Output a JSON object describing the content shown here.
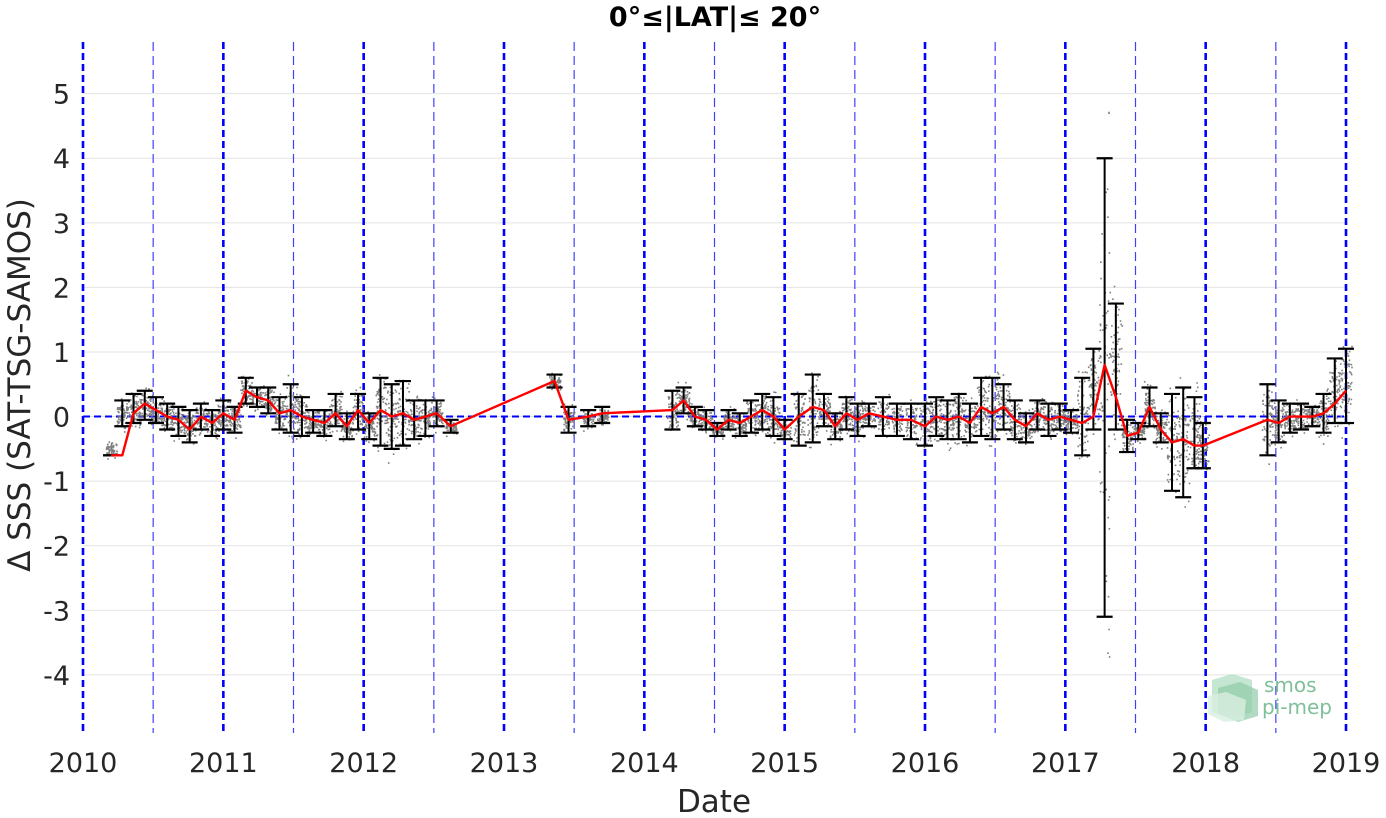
{
  "chart_data": {
    "type": "line",
    "title": "0°≤|LAT|≤ 20°",
    "xlabel": "Date",
    "ylabel": "Δ SSS (SAT-TSG-SAMOS)",
    "xlim": [
      2010,
      2019
    ],
    "ylim": [
      -4.9,
      5.8
    ],
    "x_ticks": [
      "2010",
      "2011",
      "2012",
      "2013",
      "2014",
      "2015",
      "2016",
      "2017",
      "2018",
      "2019"
    ],
    "y_ticks": [
      "-4",
      "-3",
      "-2",
      "-1",
      "0",
      "1",
      "2",
      "3",
      "4",
      "5"
    ],
    "grid": true,
    "year_lines": [
      2010,
      2011,
      2012,
      2013,
      2014,
      2015,
      2016,
      2017,
      2018,
      2019
    ],
    "half_year_lines": [
      2010.5,
      2011.5,
      2012.5,
      2013.5,
      2014.5,
      2015.5,
      2016.5,
      2017.5,
      2018.5
    ],
    "zero_line": 0,
    "colors": {
      "mean": "#ff0000",
      "scatter": "#7f7f7f",
      "errorbar": "#000000",
      "vline": "#0000ff"
    },
    "series": [
      {
        "type": "line",
        "x": [
          2010.2,
          2010.28,
          2010.36,
          2010.44,
          2010.52,
          2010.6,
          2010.68,
          2010.76,
          2010.84,
          2010.92,
          2011.0,
          2011.08,
          2011.16,
          2011.24,
          2011.32,
          2011.4,
          2011.48,
          2011.56,
          2011.64,
          2011.72,
          2011.8,
          2011.88,
          2011.96,
          2012.04,
          2012.12,
          2012.2,
          2012.28,
          2012.36,
          2012.44,
          2012.52,
          2012.62,
          2013.36,
          2013.46,
          2013.6,
          2013.7,
          2014.2,
          2014.28,
          2014.36,
          2014.44,
          2014.52,
          2014.6,
          2014.68,
          2014.76,
          2014.84,
          2014.92,
          2015.0,
          2015.1,
          2015.2,
          2015.28,
          2015.36,
          2015.44,
          2015.52,
          2015.6,
          2015.7,
          2015.8,
          2015.9,
          2016.0,
          2016.08,
          2016.16,
          2016.24,
          2016.32,
          2016.4,
          2016.48,
          2016.56,
          2016.64,
          2016.72,
          2016.8,
          2016.88,
          2016.96,
          2017.04,
          2017.12,
          2017.2,
          2017.28,
          2017.36,
          2017.44,
          2017.52,
          2017.6,
          2017.68,
          2017.76,
          2017.84,
          2017.92,
          2017.98,
          2018.44,
          2018.52,
          2018.6,
          2018.68,
          2018.76,
          2018.84,
          2018.92,
          2019.0
        ],
        "y": [
          -0.6,
          -0.6,
          0.05,
          0.2,
          0.1,
          0.0,
          -0.05,
          -0.2,
          0.0,
          -0.1,
          0.05,
          -0.05,
          0.4,
          0.3,
          0.25,
          0.05,
          0.1,
          0.0,
          -0.05,
          -0.1,
          0.05,
          -0.15,
          0.1,
          -0.1,
          0.1,
          0.0,
          0.05,
          -0.05,
          0.0,
          0.05,
          -0.15,
          0.55,
          -0.05,
          0.0,
          0.05,
          0.1,
          0.25,
          0.0,
          -0.05,
          -0.2,
          -0.05,
          -0.1,
          0.0,
          0.1,
          0.0,
          -0.2,
          0.0,
          0.15,
          0.1,
          -0.15,
          0.05,
          -0.05,
          0.05,
          0.0,
          -0.05,
          -0.05,
          -0.15,
          0.0,
          -0.05,
          0.0,
          -0.1,
          0.15,
          0.05,
          0.15,
          -0.05,
          -0.15,
          0.05,
          -0.05,
          0.0,
          -0.05,
          -0.1,
          0.0,
          0.8,
          0.3,
          -0.3,
          -0.25,
          0.15,
          -0.2,
          -0.4,
          -0.35,
          -0.45,
          -0.45,
          -0.05,
          -0.1,
          0.0,
          0.0,
          0.0,
          0.05,
          0.2,
          0.4
        ]
      },
      {
        "type": "errorbar",
        "x": [
          2010.2,
          2010.28,
          2010.36,
          2010.44,
          2010.52,
          2010.6,
          2010.68,
          2010.76,
          2010.84,
          2010.92,
          2011.0,
          2011.08,
          2011.16,
          2011.24,
          2011.32,
          2011.4,
          2011.48,
          2011.56,
          2011.64,
          2011.72,
          2011.8,
          2011.88,
          2011.96,
          2012.04,
          2012.12,
          2012.2,
          2012.28,
          2012.36,
          2012.44,
          2012.52,
          2012.62,
          2013.36,
          2013.46,
          2013.6,
          2013.7,
          2014.2,
          2014.28,
          2014.36,
          2014.44,
          2014.52,
          2014.6,
          2014.68,
          2014.76,
          2014.84,
          2014.92,
          2015.0,
          2015.1,
          2015.2,
          2015.28,
          2015.36,
          2015.44,
          2015.52,
          2015.6,
          2015.7,
          2015.8,
          2015.9,
          2016.0,
          2016.08,
          2016.16,
          2016.24,
          2016.32,
          2016.4,
          2016.48,
          2016.56,
          2016.64,
          2016.72,
          2016.8,
          2016.88,
          2016.96,
          2017.04,
          2017.12,
          2017.2,
          2017.28,
          2017.36,
          2017.44,
          2017.52,
          2017.6,
          2017.68,
          2017.76,
          2017.84,
          2017.92,
          2017.98,
          2018.44,
          2018.52,
          2018.6,
          2018.68,
          2018.76,
          2018.84,
          2018.92,
          2019.0
        ],
        "lower": [
          -0.6,
          -0.15,
          -0.1,
          -0.05,
          -0.1,
          -0.2,
          -0.3,
          -0.4,
          -0.2,
          -0.3,
          -0.2,
          -0.25,
          0.2,
          0.15,
          0.05,
          -0.2,
          -0.25,
          -0.3,
          -0.25,
          -0.3,
          -0.15,
          -0.35,
          -0.2,
          -0.35,
          -0.45,
          -0.5,
          -0.45,
          -0.35,
          -0.3,
          -0.15,
          -0.25,
          0.45,
          -0.25,
          -0.15,
          -0.1,
          -0.2,
          0.05,
          -0.15,
          -0.2,
          -0.3,
          -0.2,
          -0.3,
          -0.25,
          -0.2,
          -0.3,
          -0.35,
          -0.45,
          -0.4,
          -0.15,
          -0.35,
          -0.2,
          -0.3,
          -0.15,
          -0.3,
          -0.3,
          -0.35,
          -0.45,
          -0.3,
          -0.35,
          -0.35,
          -0.4,
          -0.3,
          -0.35,
          -0.2,
          -0.35,
          -0.4,
          -0.2,
          -0.3,
          -0.2,
          -0.25,
          -0.6,
          -0.2,
          -3.1,
          -0.2,
          -0.55,
          -0.35,
          -0.15,
          -0.4,
          -1.15,
          -1.25,
          -0.8,
          -0.8,
          -0.6,
          -0.4,
          -0.25,
          -0.2,
          -0.15,
          -0.25,
          -0.1,
          -0.1
        ],
        "upper": [
          -0.6,
          0.25,
          0.35,
          0.4,
          0.3,
          0.2,
          0.15,
          0.1,
          0.2,
          0.1,
          0.25,
          0.15,
          0.6,
          0.45,
          0.45,
          0.3,
          0.5,
          0.3,
          0.1,
          0.1,
          0.35,
          0.05,
          0.35,
          0.05,
          0.6,
          0.5,
          0.55,
          0.25,
          0.25,
          0.25,
          -0.05,
          0.65,
          0.15,
          0.1,
          0.15,
          0.4,
          0.45,
          0.15,
          0.1,
          -0.1,
          0.1,
          0.05,
          0.25,
          0.35,
          0.3,
          -0.05,
          0.35,
          0.65,
          0.35,
          0.05,
          0.3,
          0.2,
          0.2,
          0.3,
          0.2,
          0.2,
          0.2,
          0.3,
          0.25,
          0.35,
          0.2,
          0.6,
          0.6,
          0.5,
          0.25,
          0.05,
          0.25,
          0.2,
          0.2,
          0.1,
          0.6,
          1.05,
          4.0,
          1.75,
          -0.05,
          -0.1,
          0.45,
          0.05,
          0.35,
          0.45,
          0.3,
          -0.1,
          0.5,
          0.25,
          0.2,
          0.2,
          0.15,
          0.35,
          0.9,
          1.05
        ]
      }
    ]
  },
  "logo": {
    "line1": "smos",
    "line2": "pi-mep"
  }
}
